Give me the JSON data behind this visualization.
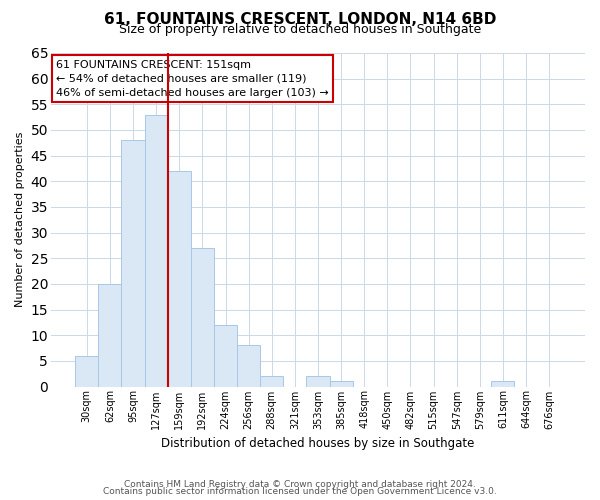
{
  "title": "61, FOUNTAINS CRESCENT, LONDON, N14 6BD",
  "subtitle": "Size of property relative to detached houses in Southgate",
  "xlabel": "Distribution of detached houses by size in Southgate",
  "ylabel": "Number of detached properties",
  "bar_labels": [
    "30sqm",
    "62sqm",
    "95sqm",
    "127sqm",
    "159sqm",
    "192sqm",
    "224sqm",
    "256sqm",
    "288sqm",
    "321sqm",
    "353sqm",
    "385sqm",
    "418sqm",
    "450sqm",
    "482sqm",
    "515sqm",
    "547sqm",
    "579sqm",
    "611sqm",
    "644sqm",
    "676sqm"
  ],
  "bar_values": [
    6,
    20,
    48,
    53,
    42,
    27,
    12,
    8,
    2,
    0,
    2,
    1,
    0,
    0,
    0,
    0,
    0,
    0,
    1,
    0,
    0
  ],
  "bar_fill_color": "#dae8f5",
  "bar_edge_color": "#a8c8e8",
  "marker_line_index": 4,
  "marker_line_color": "#cc0000",
  "ylim": [
    0,
    65
  ],
  "yticks": [
    0,
    5,
    10,
    15,
    20,
    25,
    30,
    35,
    40,
    45,
    50,
    55,
    60,
    65
  ],
  "annotation_lines": [
    "61 FOUNTAINS CRESCENT: 151sqm",
    "← 54% of detached houses are smaller (119)",
    "46% of semi-detached houses are larger (103) →"
  ],
  "annotation_box_color": "#ffffff",
  "annotation_box_edge_color": "#cc0000",
  "footer_line1": "Contains HM Land Registry data © Crown copyright and database right 2024.",
  "footer_line2": "Contains public sector information licensed under the Open Government Licence v3.0.",
  "bg_color": "#ffffff",
  "grid_color": "#ccd8e8",
  "title_fontsize": 11,
  "subtitle_fontsize": 9,
  "ylabel_fontsize": 8,
  "xlabel_fontsize": 8.5,
  "tick_fontsize": 7,
  "annotation_fontsize": 8,
  "footer_fontsize": 6.5
}
